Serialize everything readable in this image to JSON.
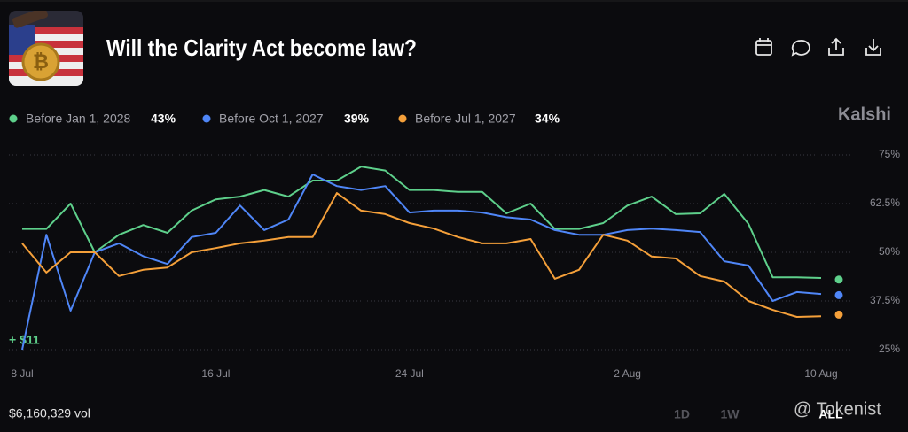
{
  "chart_data": {
    "type": "line",
    "title": "Will the Clarity Act become law?",
    "brand": "Kalshi",
    "annotation": "+ $11",
    "volume": "$6,160,329 vol",
    "range_buttons": [
      "1D",
      "1W",
      "ALL"
    ],
    "watermark": "@ Tokenist",
    "x": [
      "8 Jul",
      null,
      null,
      null,
      null,
      null,
      null,
      null,
      "16 Jul",
      null,
      null,
      null,
      null,
      null,
      null,
      null,
      "24 Jul",
      null,
      null,
      null,
      null,
      null,
      null,
      null,
      null,
      "2 Aug",
      null,
      null,
      null,
      null,
      null,
      null,
      null,
      "10 Aug"
    ],
    "ylim": [
      25,
      75
    ],
    "yticks": [
      {
        "value": 75,
        "label": "75%"
      },
      {
        "value": 62.5,
        "label": "62.5%"
      },
      {
        "value": 50,
        "label": "50%"
      },
      {
        "value": 37.5,
        "label": "37.5%"
      },
      {
        "value": 25,
        "label": "25%"
      }
    ],
    "grid": true,
    "series": [
      {
        "name": "Before Jan 1, 2028",
        "color": "#5ed08b",
        "legend_value": {
          "value": 43,
          "label": "43%"
        },
        "values": [
          56,
          56,
          62.5,
          50,
          54.5,
          57,
          55,
          60.7,
          63.6,
          64.3,
          66,
          64.3,
          68.4,
          68.4,
          72,
          71,
          66,
          66,
          65.5,
          65.5,
          60,
          62.5,
          56,
          56,
          57.5,
          62,
          64.3,
          59.8,
          60,
          65,
          57.3,
          43.6,
          43.6,
          43.4
        ]
      },
      {
        "name": "Before Oct 1, 2027",
        "color": "#4f86f7",
        "legend_value": {
          "value": 39,
          "label": "39%"
        },
        "values": [
          25,
          54.5,
          35,
          50,
          52.3,
          49,
          47,
          53.9,
          55,
          62,
          55.7,
          58.4,
          70,
          67,
          66,
          67,
          60.2,
          60.7,
          60.7,
          60.2,
          59,
          58.4,
          55.7,
          54.5,
          54.5,
          55.7,
          56.1,
          55.7,
          55.2,
          47.7,
          46.6,
          37.5,
          39.8,
          39.3
        ]
      },
      {
        "name": "Before Jul 1, 2027",
        "color": "#f5a03a",
        "legend_value": {
          "value": 34,
          "label": "34%"
        },
        "values": [
          52.3,
          44.8,
          50,
          50,
          43.9,
          45.5,
          46.1,
          50,
          51.1,
          52.3,
          53,
          53.9,
          53.9,
          65.2,
          60.7,
          59.8,
          57.5,
          56.1,
          53.9,
          52.3,
          52.3,
          53.4,
          43.2,
          45.5,
          54.5,
          53,
          48.9,
          48.4,
          43.9,
          42.5,
          37.5,
          35.2,
          33.4,
          33.6
        ]
      }
    ]
  }
}
